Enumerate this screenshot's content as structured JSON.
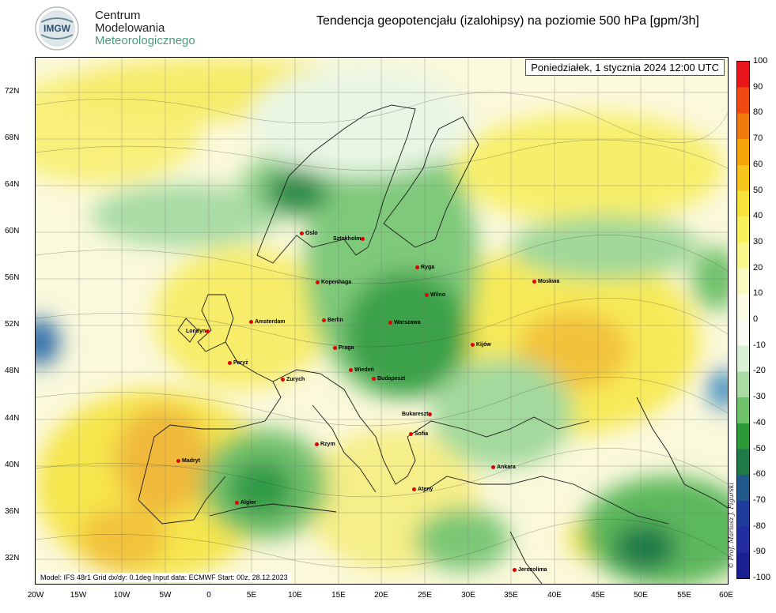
{
  "header": {
    "logo_text": "IMGW",
    "org_line1": "Centrum",
    "org_line2": "Modelowania",
    "org_line3": "Meteorologicznego",
    "title": "Tendencja geopotencjału (izalohipsy) na poziomie 500 hPa  [gpm/3h]"
  },
  "map": {
    "datetime": "Poniedziałek, 1 stycznia 2024 12:00 UTC",
    "footer": "Model: IFS 48r1  Grid dx/dy: 0.1deg  Input data: ECMWF  Start: 00z, 28.12.2023",
    "credit": "© Prof. Mariusz J. Figurski",
    "lat_labels": [
      "72N",
      "68N",
      "64N",
      "60N",
      "56N",
      "52N",
      "48N",
      "44N",
      "40N",
      "36N",
      "32N"
    ],
    "lon_labels": [
      "20W",
      "15W",
      "10W",
      "5W",
      "0",
      "5E",
      "10E",
      "15E",
      "20E",
      "25E",
      "30E",
      "35E",
      "40E",
      "45E",
      "50E",
      "55E",
      "60E"
    ],
    "cities": [
      {
        "name": "Oslo"
      },
      {
        "name": "Sztokholm"
      },
      {
        "name": "Ryga"
      },
      {
        "name": "Kopenhaga"
      },
      {
        "name": "Moskwa"
      },
      {
        "name": "Wilno"
      },
      {
        "name": "Londyn"
      },
      {
        "name": "Amsterdam"
      },
      {
        "name": "Berlin"
      },
      {
        "name": "Warszawa"
      },
      {
        "name": "Praga"
      },
      {
        "name": "Kijów"
      },
      {
        "name": "Paryż"
      },
      {
        "name": "Wiedeń"
      },
      {
        "name": "Budapeszt"
      },
      {
        "name": "Zurych"
      },
      {
        "name": "Bukareszt"
      },
      {
        "name": "Sofia"
      },
      {
        "name": "Rzym"
      },
      {
        "name": "Madryt"
      },
      {
        "name": "Ankara"
      },
      {
        "name": "Algier"
      },
      {
        "name": "Ateny"
      },
      {
        "name": "Jerozolima"
      }
    ]
  },
  "colorbar": {
    "labels": [
      "100",
      "90",
      "80",
      "70",
      "60",
      "50",
      "40",
      "30",
      "20",
      "10",
      "0",
      "-10",
      "-20",
      "-30",
      "-40",
      "-50",
      "-60",
      "-70",
      "-80",
      "-90",
      "-100"
    ],
    "colors": [
      "#e8161a",
      "#f04a12",
      "#f07a0c",
      "#f5a40a",
      "#f7c51c",
      "#f6e23a",
      "#f7f15c",
      "#f9f78c",
      "#fbfac0",
      "#fdfde6",
      "#f7fbf2",
      "#d9f0d5",
      "#a8dca2",
      "#6dc26a",
      "#2d9a3a",
      "#1f7a4a",
      "#1f5a8a",
      "#1f3c9a",
      "#232ca0",
      "#1a2090"
    ]
  }
}
